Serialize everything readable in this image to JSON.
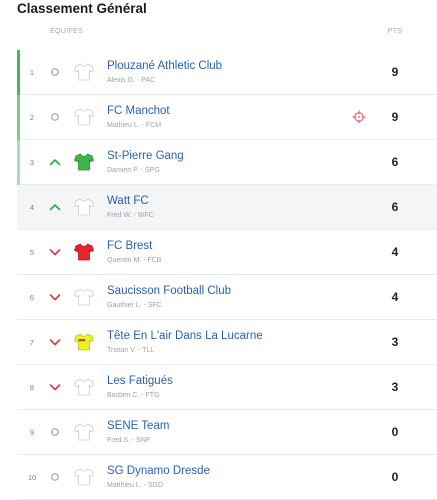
{
  "title": "Classement Général",
  "header": {
    "teams_label": "ÉQUIPES",
    "points_label": "PTS"
  },
  "colors": {
    "link": "#2b5fb4",
    "trend_up": "#2fa84f",
    "trend_down": "#e2333d",
    "trend_neutral": "#9aa1a8",
    "highlight_bg": "#f4f5f7",
    "target": "#e8505b"
  },
  "rows": [
    {
      "rank": 1,
      "trend_icon": "circle-icon",
      "jersey": {
        "color": "#ffffff",
        "stroke": "#c9ccd0",
        "accent": ""
      },
      "name": "Plouzané Athletic Club",
      "manager": "Alexis G. - PAC",
      "points": 9,
      "bar_color": "#43b95a",
      "highlighted": false,
      "badge_icon": ""
    },
    {
      "rank": 2,
      "trend_icon": "circle-icon",
      "jersey": {
        "color": "#ffffff",
        "stroke": "#c9ccd0",
        "accent": ""
      },
      "name": "FC Manchot",
      "manager": "Mathieu L. - FCM",
      "points": 9,
      "bar_color": "#7ccd88",
      "highlighted": false,
      "badge_icon": "target-icon"
    },
    {
      "rank": 3,
      "trend_icon": "up-arrow-icon",
      "jersey": {
        "color": "#3cb64b",
        "stroke": "#2d8f3a",
        "accent": ""
      },
      "name": "St-Pierre Gang",
      "manager": "Damien P. - SPG",
      "points": 6,
      "bar_color": "#a9dfb1",
      "highlighted": false,
      "badge_icon": ""
    },
    {
      "rank": 4,
      "trend_icon": "up-arrow-icon",
      "jersey": {
        "color": "#ffffff",
        "stroke": "#c9ccd0",
        "accent": ""
      },
      "name": "Watt FC",
      "manager": "Fred W. - WFC",
      "points": 6,
      "bar_color": "",
      "highlighted": true,
      "badge_icon": ""
    },
    {
      "rank": 5,
      "trend_icon": "down-arrow-icon",
      "jersey": {
        "color": "#e3262b",
        "stroke": "#b71c1c",
        "accent": ""
      },
      "name": "FC Brest",
      "manager": "Quentin M. - FCB",
      "points": 4,
      "bar_color": "",
      "highlighted": false,
      "badge_icon": ""
    },
    {
      "rank": 6,
      "trend_icon": "down-arrow-icon",
      "jersey": {
        "color": "#ffffff",
        "stroke": "#c9ccd0",
        "accent": ""
      },
      "name": "Saucisson Football Club",
      "manager": "Gauthier L. - SFC",
      "points": 4,
      "bar_color": "",
      "highlighted": false,
      "badge_icon": ""
    },
    {
      "rank": 7,
      "trend_icon": "down-arrow-icon",
      "jersey": {
        "color": "#e8f51f",
        "stroke": "#b8c41a",
        "accent": "#e53935"
      },
      "name": "Tête En L'air Dans La Lucarne",
      "manager": "Tristan V. - TLL",
      "points": 3,
      "bar_color": "",
      "highlighted": false,
      "badge_icon": ""
    },
    {
      "rank": 8,
      "trend_icon": "down-arrow-icon",
      "jersey": {
        "color": "#ffffff",
        "stroke": "#c9ccd0",
        "accent": ""
      },
      "name": "Les Fatigués",
      "manager": "Bastien C. - FTG",
      "points": 3,
      "bar_color": "",
      "highlighted": false,
      "badge_icon": ""
    },
    {
      "rank": 9,
      "trend_icon": "circle-icon",
      "jersey": {
        "color": "#ffffff",
        "stroke": "#c9ccd0",
        "accent": ""
      },
      "name": "SENE Team",
      "manager": "Fred S. - SNF",
      "points": 0,
      "bar_color": "",
      "highlighted": false,
      "badge_icon": ""
    },
    {
      "rank": 10,
      "trend_icon": "circle-icon",
      "jersey": {
        "color": "#ffffff",
        "stroke": "#c9ccd0",
        "accent": ""
      },
      "name": "SG Dynamo Dresde",
      "manager": "Matthieu L. - SGD",
      "points": 0,
      "bar_color": "",
      "highlighted": false,
      "badge_icon": ""
    }
  ]
}
